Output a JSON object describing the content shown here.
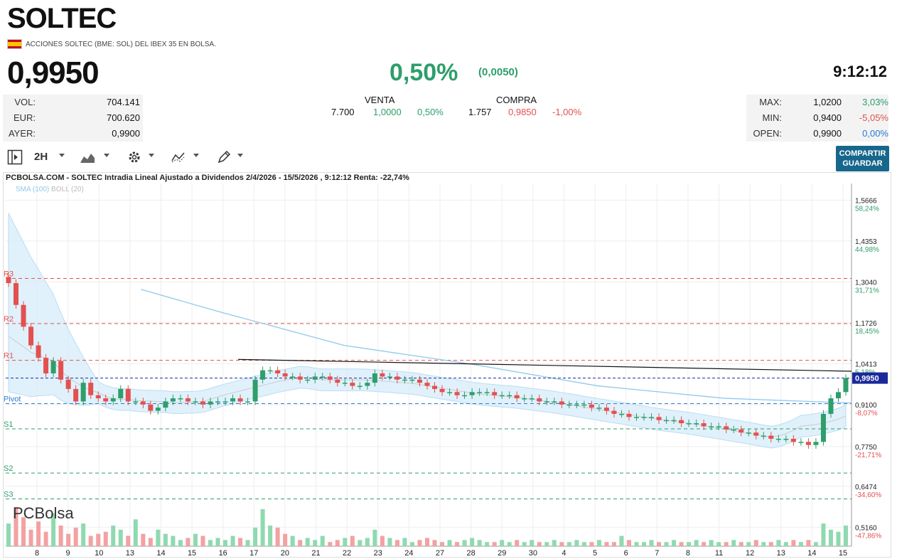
{
  "header": {
    "title": "SOLTEC",
    "subtitle": "ACCIONES SOLTEC (BME: SOL) DEL IBEX 35 EN BOLSA.",
    "price": "0,9950",
    "change_pct": "0,50%",
    "change_abs": "(0,0050)",
    "time": "9:12:12"
  },
  "stats_left": [
    {
      "label": "VOL:",
      "value": "704.141"
    },
    {
      "label": "EUR:",
      "value": "700.620"
    },
    {
      "label": "AYER:",
      "value": "0,9900"
    }
  ],
  "venta": {
    "label": "VENTA",
    "qty": "7.700",
    "price": "1,0000",
    "pct": "0,50%"
  },
  "compra": {
    "label": "COMPRA",
    "qty": "1.757",
    "price": "0,9850",
    "pct": "-1,00%"
  },
  "stats_right": [
    {
      "label": "MAX:",
      "value": "1,0200",
      "pct": "3,03%"
    },
    {
      "label": "MIN:",
      "value": "0,9400",
      "pct": "-5,05%"
    },
    {
      "label": "OPEN:",
      "value": "0,9900",
      "pct": "0,00%"
    }
  ],
  "toolbar": {
    "interval": "2H",
    "share_line1": "COMPARTIR",
    "share_line2": "GUARDAR"
  },
  "colors": {
    "up": "#2e9e6b",
    "down": "#e35050",
    "accent": "#17678c"
  },
  "chart_data": {
    "type": "candlestick",
    "title": "PCBOLSA.COM - SOLTEC Intradia Lineal Ajustado a Dividendos 2/4/2026 - 15/5/2026 , 9:12:12 Renta: -22,74%",
    "legend": [
      "SMA (100)",
      "BOLL (20)"
    ],
    "logo": "PCBolsa",
    "ylim": [
      0.455,
      1.62
    ],
    "x_ticks": [
      "8",
      "9",
      "10",
      "13",
      "14",
      "15",
      "16",
      "17",
      "20",
      "21",
      "22",
      "23",
      "24",
      "27",
      "28",
      "29",
      "30",
      "4",
      "5",
      "6",
      "7",
      "8",
      "11",
      "12",
      "13",
      "14",
      "15"
    ],
    "y_ticks": [
      {
        "price": 1.5666,
        "label": "1,5666",
        "pct": "58,24%"
      },
      {
        "price": 1.4353,
        "label": "1,4353",
        "pct": "44,98%"
      },
      {
        "price": 1.304,
        "label": "1,3040",
        "pct": "31,71%"
      },
      {
        "price": 1.1726,
        "label": "1,1726",
        "pct": "18,45%"
      },
      {
        "price": 1.0413,
        "label": "1,0413",
        "pct": "5,18%"
      },
      {
        "price": 0.91,
        "label": "0,9100",
        "pct": "-8,07%"
      },
      {
        "price": 0.775,
        "label": "0,7750",
        "pct": "-21,71%"
      },
      {
        "price": 0.6474,
        "label": "0,6474",
        "pct": "-34,60%"
      },
      {
        "price": 0.516,
        "label": "0,5160",
        "pct": "-47,86%"
      }
    ],
    "current": {
      "price": 0.995,
      "label": "0,9950"
    },
    "levels": [
      {
        "name": "R3",
        "price": 1.315,
        "color": "#e35050"
      },
      {
        "name": "R2",
        "price": 1.17,
        "color": "#e35050"
      },
      {
        "name": "R1",
        "price": 1.052,
        "color": "#e35050"
      },
      {
        "name": "Pivot",
        "price": 0.913,
        "color": "#2b7bd0"
      },
      {
        "name": "S1",
        "price": 0.832,
        "color": "#2e9e6b"
      },
      {
        "name": "S2",
        "price": 0.69,
        "color": "#2e9e6b"
      },
      {
        "name": "S3",
        "price": 0.607,
        "color": "#2e9e6b"
      }
    ],
    "close": [
      1.3,
      1.23,
      1.16,
      1.1,
      1.06,
      1.01,
      1.05,
      0.99,
      0.96,
      0.92,
      0.98,
      0.94,
      0.93,
      0.92,
      0.93,
      0.96,
      0.92,
      0.92,
      0.91,
      0.89,
      0.9,
      0.92,
      0.93,
      0.93,
      0.92,
      0.92,
      0.91,
      0.92,
      0.92,
      0.92,
      0.93,
      0.92,
      0.92,
      0.99,
      1.02,
      1.02,
      1.01,
      1.0,
      1.0,
      0.99,
      0.99,
      1.0,
      1.0,
      0.99,
      0.98,
      0.98,
      0.97,
      0.97,
      0.98,
      1.01,
      1.0,
      1.0,
      0.99,
      0.99,
      0.99,
      0.98,
      0.97,
      0.96,
      0.95,
      0.95,
      0.94,
      0.94,
      0.95,
      0.95,
      0.95,
      0.94,
      0.94,
      0.94,
      0.93,
      0.93,
      0.93,
      0.92,
      0.92,
      0.92,
      0.91,
      0.91,
      0.91,
      0.91,
      0.9,
      0.9,
      0.89,
      0.88,
      0.88,
      0.87,
      0.87,
      0.87,
      0.87,
      0.86,
      0.86,
      0.86,
      0.85,
      0.85,
      0.85,
      0.84,
      0.84,
      0.84,
      0.83,
      0.83,
      0.82,
      0.82,
      0.81,
      0.81,
      0.8,
      0.8,
      0.8,
      0.79,
      0.79,
      0.78,
      0.79,
      0.88,
      0.93,
      0.95,
      0.995
    ],
    "volume_rel": [
      0.55,
      0.95,
      0.7,
      0.4,
      0.6,
      0.35,
      0.8,
      0.5,
      0.3,
      0.45,
      0.55,
      0.25,
      0.3,
      0.35,
      0.5,
      0.4,
      0.25,
      0.65,
      0.3,
      0.2,
      0.4,
      0.3,
      0.25,
      0.15,
      0.2,
      0.3,
      0.25,
      0.15,
      0.2,
      0.15,
      0.25,
      0.2,
      0.15,
      0.45,
      0.9,
      0.5,
      0.45,
      0.3,
      0.25,
      0.15,
      0.2,
      0.15,
      0.25,
      0.1,
      0.15,
      0.2,
      0.25,
      0.15,
      0.2,
      0.4,
      0.25,
      0.2,
      0.15,
      0.2,
      0.1,
      0.15,
      0.2,
      0.15,
      0.1,
      0.15,
      0.1,
      0.15,
      0.2,
      0.15,
      0.1,
      0.1,
      0.15,
      0.1,
      0.15,
      0.1,
      0.15,
      0.1,
      0.1,
      0.15,
      0.1,
      0.1,
      0.15,
      0.1,
      0.1,
      0.15,
      0.1,
      0.1,
      0.25,
      0.15,
      0.1,
      0.1,
      0.15,
      0.1,
      0.1,
      0.15,
      0.1,
      0.1,
      0.15,
      0.1,
      0.15,
      0.1,
      0.1,
      0.15,
      0.1,
      0.1,
      0.15,
      0.1,
      0.1,
      0.15,
      0.1,
      0.15,
      0.1,
      0.15,
      0.1,
      0.55,
      0.4,
      0.35,
      0.5
    ],
    "sma100": [
      [
        0.16,
        1.28
      ],
      [
        0.25,
        1.21
      ],
      [
        0.4,
        1.1
      ],
      [
        0.55,
        1.04
      ],
      [
        0.7,
        0.97
      ],
      [
        0.85,
        0.93
      ],
      [
        1.0,
        0.915
      ]
    ],
    "trendline": [
      [
        0.275,
        1.055
      ],
      [
        1.0,
        1.017
      ]
    ]
  }
}
